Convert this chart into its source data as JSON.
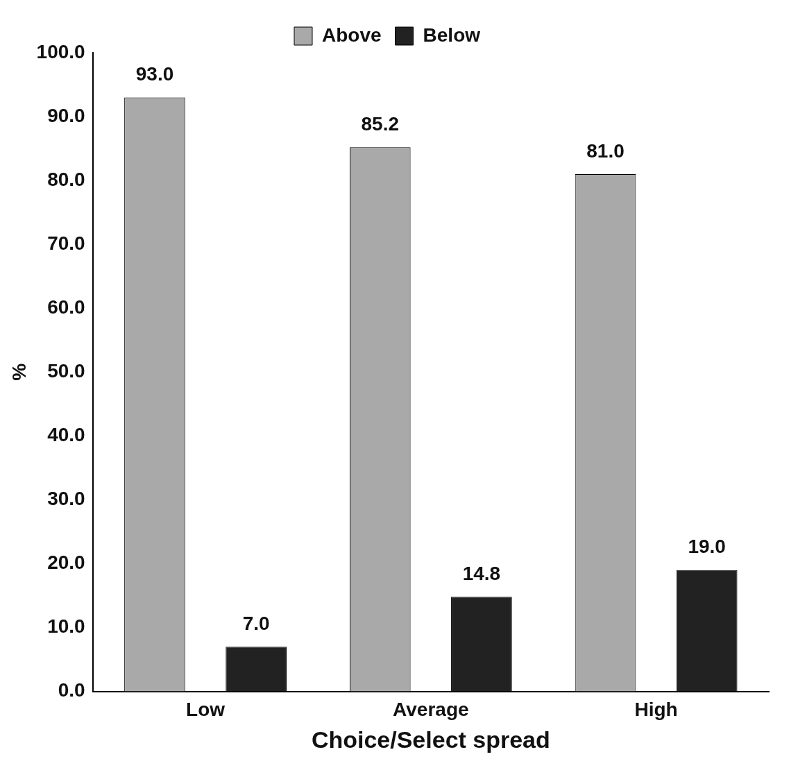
{
  "chart_data": {
    "type": "bar",
    "xlabel": "Choice/Select spread",
    "ylabel": "%",
    "categories": [
      "Low",
      "Average",
      "High"
    ],
    "series": [
      {
        "name": "Above",
        "color": "#a9a9a9",
        "values": [
          93.0,
          85.2,
          81.0
        ],
        "value_labels": [
          "93.0",
          "85.2",
          "81.0"
        ]
      },
      {
        "name": "Below",
        "color": "#222222",
        "values": [
          7.0,
          14.8,
          19.0
        ],
        "value_labels": [
          "7.0",
          "14.8",
          "19.0"
        ]
      }
    ],
    "ylim": [
      0,
      100
    ],
    "yticks": [
      {
        "value": 0,
        "label": "0.0"
      },
      {
        "value": 10,
        "label": "10.0"
      },
      {
        "value": 20,
        "label": "20.0"
      },
      {
        "value": 30,
        "label": "30.0"
      },
      {
        "value": 40,
        "label": "40.0"
      },
      {
        "value": 50,
        "label": "50.0"
      },
      {
        "value": 60,
        "label": "60.0"
      },
      {
        "value": 70,
        "label": "70.0"
      },
      {
        "value": 80,
        "label": "80.0"
      },
      {
        "value": 90,
        "label": "90.0"
      },
      {
        "value": 100,
        "label": "100.0"
      }
    ],
    "grid": false,
    "legend": "top"
  }
}
